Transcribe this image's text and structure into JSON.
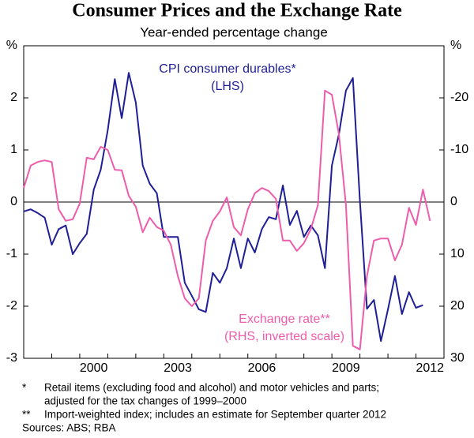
{
  "chart_data": {
    "type": "line",
    "title": "Consumer Prices and the Exchange Rate",
    "subtitle": "Year-ended percentage change",
    "xlim": [
      1998,
      2013
    ],
    "xticks": [
      {
        "value": 2000.5,
        "label": "2000"
      },
      {
        "value": 2003.5,
        "label": "2003"
      },
      {
        "value": 2006.5,
        "label": "2006"
      },
      {
        "value": 2009.5,
        "label": "2009"
      },
      {
        "value": 2012.5,
        "label": "2012"
      }
    ],
    "xminorticks": [
      1999,
      2000,
      2001,
      2002,
      2003,
      2004,
      2005,
      2006,
      2007,
      2008,
      2009,
      2010,
      2011,
      2012
    ],
    "ylim": [
      -3,
      3
    ],
    "yticks": [
      -3,
      -2,
      -1,
      0,
      1,
      2,
      {
        "value": 3,
        "label": "%"
      }
    ],
    "y2lim": [
      30,
      -30
    ],
    "y2ticks": [
      30,
      20,
      10,
      0,
      -10,
      -20,
      {
        "value": -30,
        "label": "%"
      }
    ],
    "zero_line": true,
    "series": [
      {
        "name": "CPI consumer durables*",
        "note": "(LHS)",
        "color": "#1e1e96",
        "x": [
          1998,
          1998.25,
          1998.5,
          1998.75,
          1999,
          1999.25,
          1999.5,
          1999.75,
          2000,
          2000.25,
          2000.5,
          2000.75,
          2001,
          2001.25,
          2001.5,
          2001.75,
          2002,
          2002.25,
          2002.5,
          2002.75,
          2003,
          2003.25,
          2003.5,
          2003.75,
          2004,
          2004.25,
          2004.5,
          2004.75,
          2005,
          2005.25,
          2005.5,
          2005.75,
          2006,
          2006.25,
          2006.5,
          2006.75,
          2007,
          2007.25,
          2007.5,
          2007.75,
          2008,
          2008.25,
          2008.5,
          2008.75,
          2009,
          2009.25,
          2009.5,
          2009.75,
          2010,
          2010.25,
          2010.5,
          2010.75,
          2011,
          2011.25,
          2011.5,
          2011.75,
          2012,
          2012.25
        ],
        "values": [
          -0.18,
          -0.14,
          -0.21,
          -0.3,
          -0.82,
          -0.52,
          -0.45,
          -1.0,
          -0.79,
          -0.61,
          0.24,
          0.62,
          1.38,
          2.36,
          1.61,
          2.48,
          1.91,
          0.7,
          0.35,
          0.17,
          -0.67,
          -0.67,
          -0.67,
          -1.55,
          -1.8,
          -2.06,
          -2.11,
          -1.36,
          -1.55,
          -1.27,
          -0.7,
          -1.27,
          -0.7,
          -0.97,
          -0.52,
          -0.29,
          -0.33,
          0.32,
          -0.44,
          -0.17,
          -0.67,
          -0.45,
          -0.64,
          -1.27,
          0.7,
          1.3,
          2.14,
          2.38,
          0.02,
          -2.05,
          -1.88,
          -2.67,
          -2.06,
          -1.42,
          -2.15,
          -1.73,
          -2.03,
          -1.98
        ]
      },
      {
        "name": "Exchange rate**",
        "note": "(RHS, inverted scale)",
        "color": "#ee5cab",
        "axis": "y2",
        "x": [
          1998,
          1998.25,
          1998.5,
          1998.75,
          1999,
          1999.25,
          1999.5,
          1999.75,
          2000,
          2000.25,
          2000.5,
          2000.75,
          2001,
          2001.25,
          2001.5,
          2001.75,
          2002,
          2002.25,
          2002.5,
          2002.75,
          2003,
          2003.25,
          2003.5,
          2003.75,
          2004,
          2004.25,
          2004.5,
          2004.75,
          2005,
          2005.25,
          2005.5,
          2005.75,
          2006,
          2006.25,
          2006.5,
          2006.75,
          2007,
          2007.25,
          2007.5,
          2007.75,
          2008,
          2008.25,
          2008.5,
          2008.75,
          2009,
          2009.25,
          2009.5,
          2009.75,
          2010,
          2010.25,
          2010.5,
          2010.75,
          2011,
          2011.25,
          2011.5,
          2011.75,
          2012,
          2012.25,
          2012.5
        ],
        "values": [
          -2.7,
          -7.0,
          -7.7,
          -8.0,
          -7.7,
          1.4,
          3.6,
          3.3,
          0.3,
          -8.5,
          -8.2,
          -10.6,
          -10.0,
          -6.2,
          -6.1,
          -1.2,
          0.9,
          5.8,
          3.0,
          4.8,
          5.5,
          8.2,
          14.2,
          18.5,
          20.0,
          18.5,
          7.4,
          3.6,
          1.8,
          -0.9,
          4.8,
          6.4,
          1.4,
          -1.7,
          -2.7,
          -2.1,
          -0.6,
          7.4,
          7.4,
          9.4,
          7.9,
          5.2,
          0.6,
          -21.4,
          -20.6,
          -13.0,
          0.6,
          27.6,
          28.3,
          14.2,
          7.4,
          7.0,
          7.0,
          11.2,
          8.2,
          1.1,
          4.4,
          -2.4,
          3.6
        ]
      }
    ],
    "footnotes": [
      {
        "marker": "*",
        "lines": [
          "Retail items (excluding food and alcohol) and motor vehicles and parts;",
          "adjusted for the tax changes of 1999–2000"
        ]
      },
      {
        "marker": "**",
        "lines": [
          "Import-weighted index; includes an estimate for September quarter 2012"
        ]
      }
    ],
    "sources": "Sources: ABS; RBA"
  }
}
